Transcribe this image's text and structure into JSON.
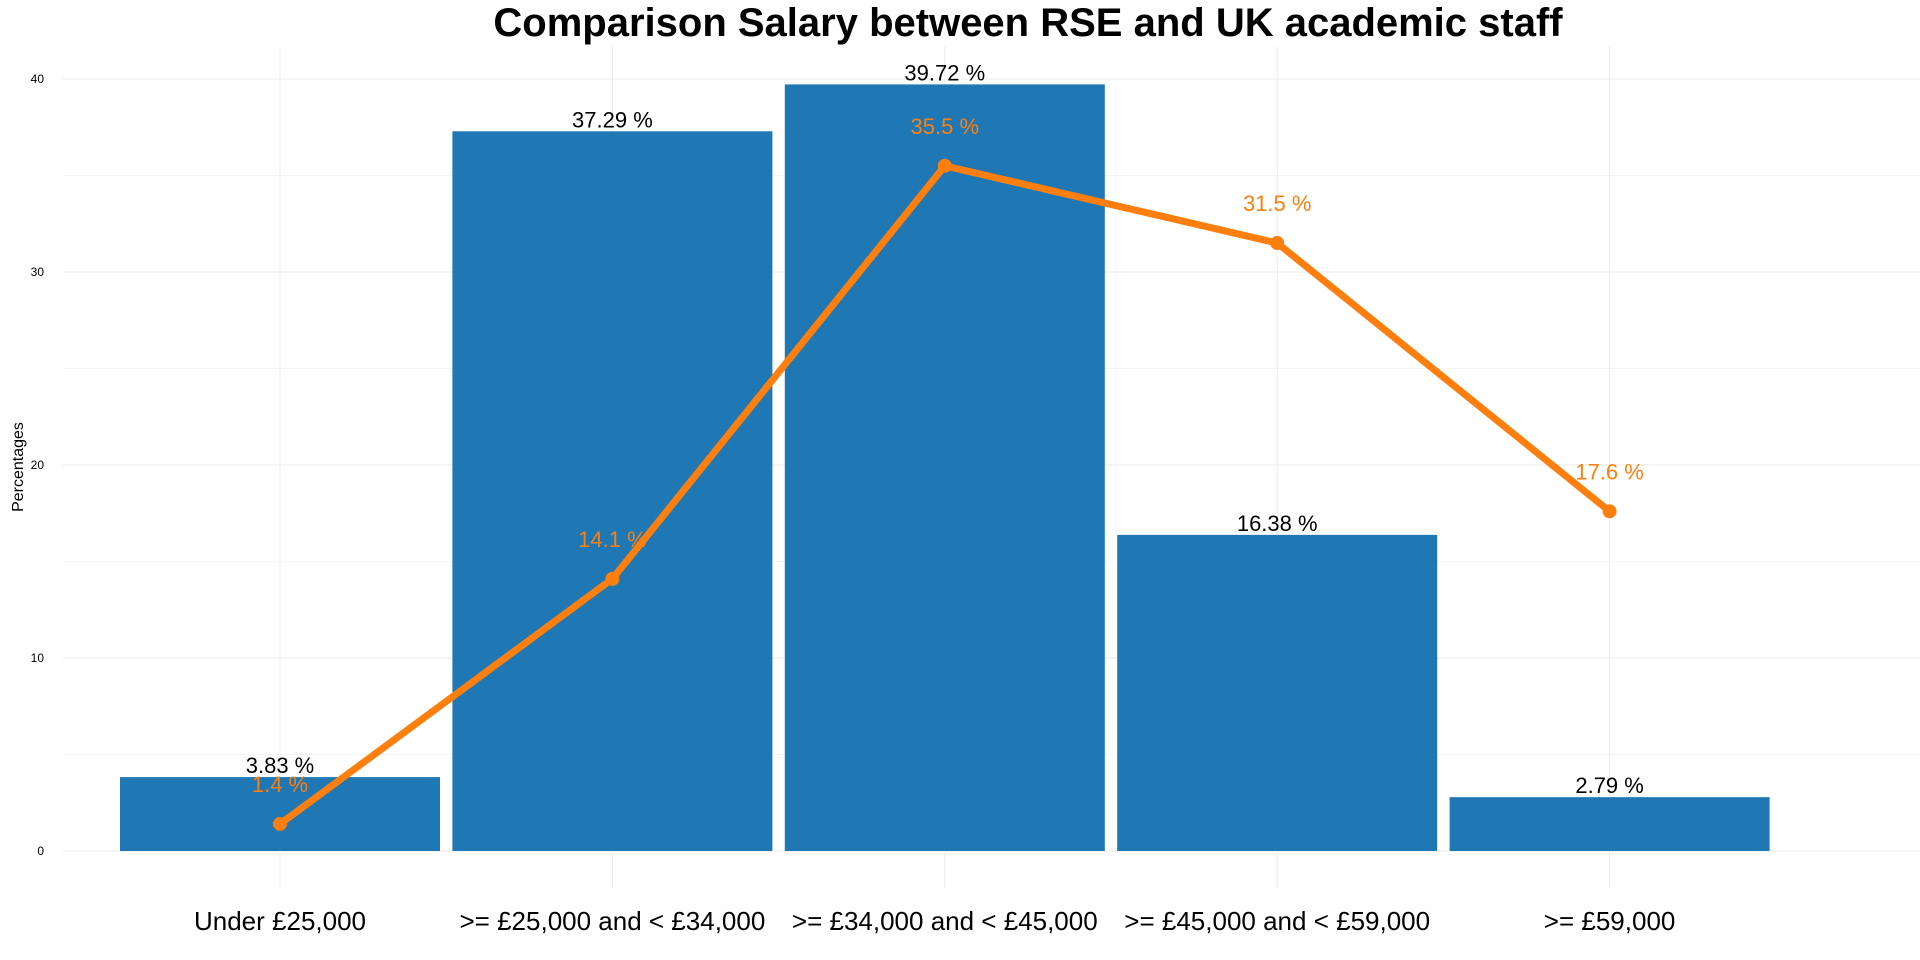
{
  "chart_data": {
    "type": "bar",
    "title": "Comparison Salary between RSE and UK academic staff",
    "ylabel": "Percentages",
    "xlabel": "",
    "categories": [
      "Under £25,000",
      ">= £25,000 and < £34,000",
      ">= £34,000 and < £45,000",
      ">= £45,000 and < £59,000",
      ">= £59,000"
    ],
    "ylim": [
      0,
      41.5
    ],
    "yticks": [
      0,
      10,
      20,
      30,
      40
    ],
    "grid": true,
    "legend": "none",
    "series": [
      {
        "type": "bar",
        "values": [
          3.83,
          37.29,
          39.72,
          16.38,
          2.79
        ],
        "labels": [
          "3.83 %",
          "37.29 %",
          "39.72 %",
          "16.38 %",
          "2.79 %"
        ],
        "color": "#1f77b4"
      },
      {
        "type": "line",
        "values": [
          1.4,
          14.1,
          35.5,
          31.5,
          17.6
        ],
        "labels": [
          "1.4 %",
          "14.1 %",
          "35.5 %",
          "31.5 %",
          "17.6 %"
        ],
        "color": "#ff7f0e"
      }
    ]
  }
}
